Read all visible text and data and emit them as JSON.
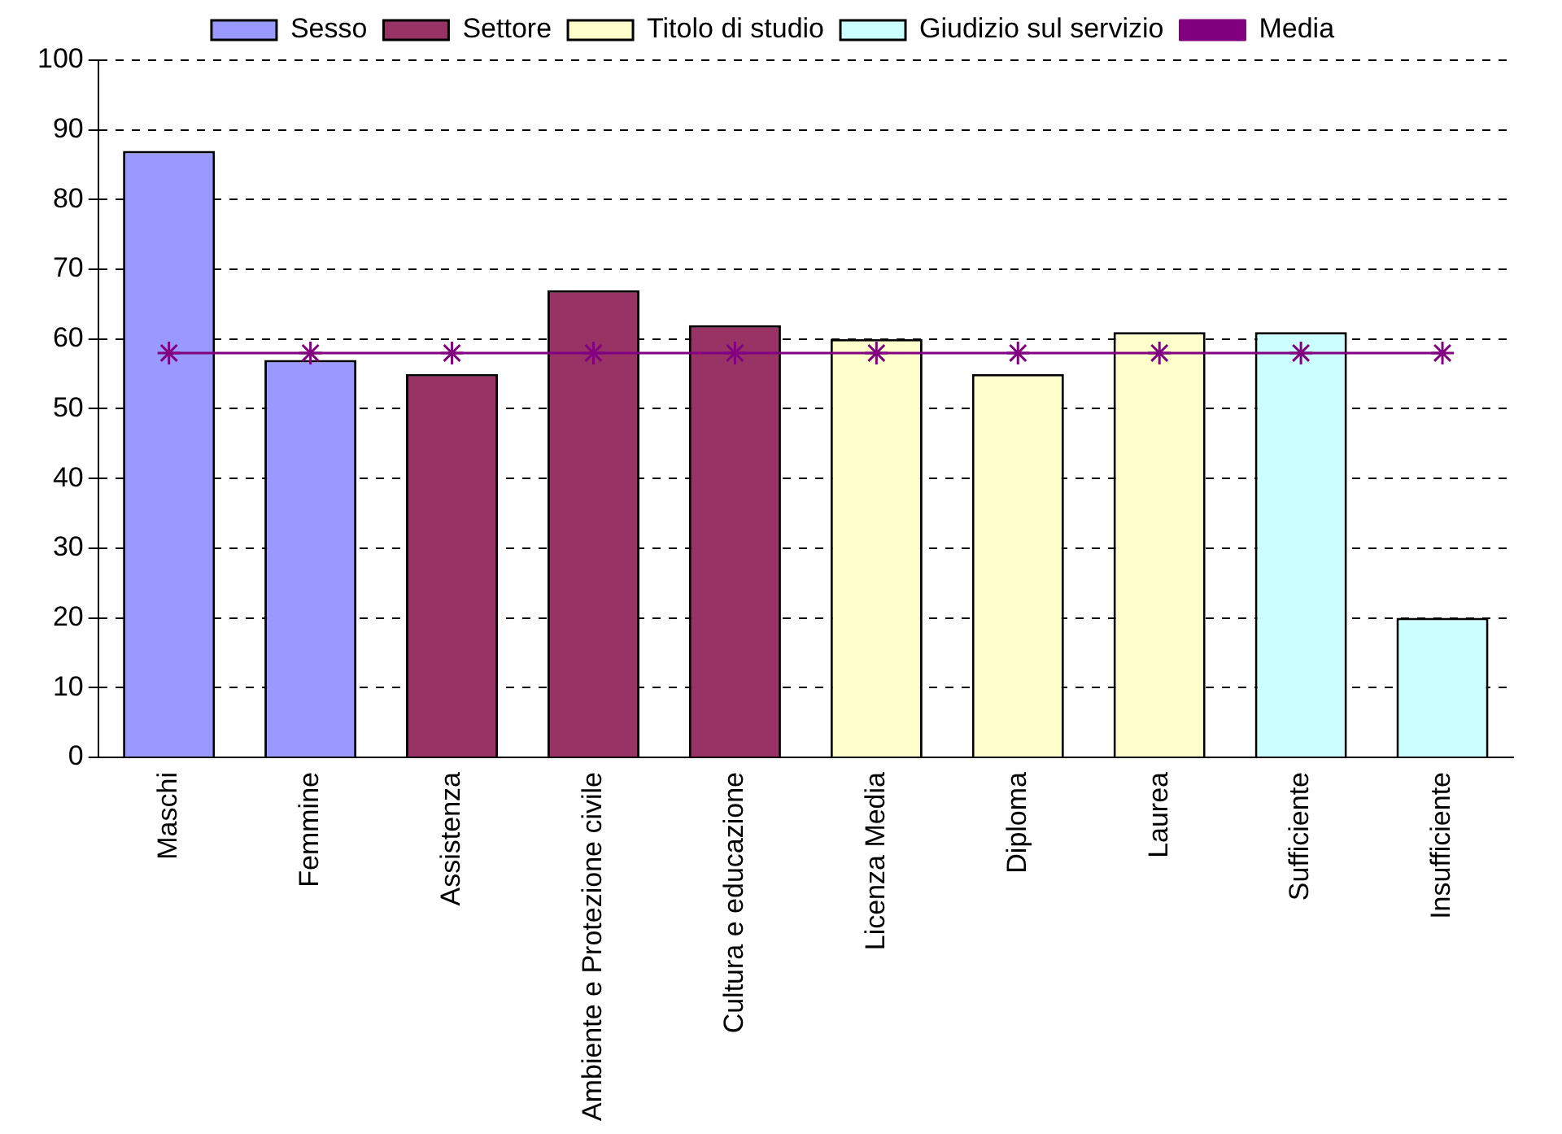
{
  "chart_data": {
    "type": "bar",
    "stacked": true,
    "categories": [
      "Maschi",
      "Femmine",
      "Assistenza",
      "Ambiente e Protezione civile",
      "Cultura e educazione",
      "Licenza Media",
      "Diploma",
      "Laurea",
      "Sufficiente",
      "Insufficiente"
    ],
    "series": [
      {
        "name": "Sesso",
        "color": "#9999ff",
        "values": [
          87,
          57,
          null,
          null,
          null,
          null,
          null,
          null,
          null,
          null
        ]
      },
      {
        "name": "Settore",
        "color": "#993366",
        "values": [
          null,
          null,
          55,
          67,
          62,
          null,
          null,
          null,
          null,
          null
        ]
      },
      {
        "name": "Titolo di studio",
        "color": "#ffffcc",
        "values": [
          null,
          null,
          null,
          null,
          null,
          60,
          55,
          61,
          null,
          null
        ]
      },
      {
        "name": "Giudizio sul servizio",
        "color": "#ccffff",
        "values": [
          null,
          null,
          null,
          null,
          null,
          null,
          null,
          null,
          61,
          20
        ]
      },
      {
        "name": "Media",
        "type": "line",
        "color": "#800080",
        "values": [
          58,
          58,
          58,
          58,
          58,
          58,
          58,
          58,
          58,
          58
        ]
      }
    ],
    "ylim": [
      0,
      100
    ],
    "yticks": [
      0,
      10,
      20,
      30,
      40,
      50,
      60,
      70,
      80,
      90,
      100
    ],
    "grid": "y",
    "legend": "top",
    "marker": "cross"
  }
}
